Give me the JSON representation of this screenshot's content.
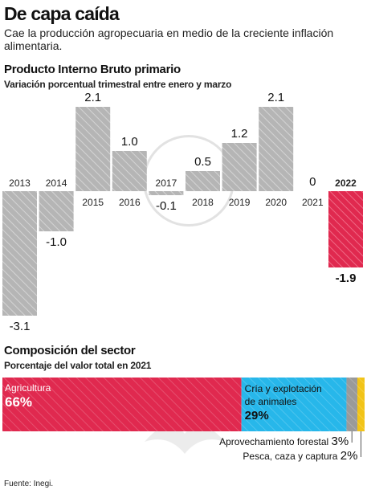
{
  "header": {
    "title": "De capa caída",
    "subtitle": "Cae la producción agropecuaria en medio de la creciente inflación alimentaria."
  },
  "gdp": {
    "title": "Producto Interno Bruto primario",
    "subtitle": "Variación porcentual trimestral entre enero y marzo"
  },
  "composition": {
    "title": "Composición del sector",
    "subtitle": "Porcentaje del valor total en 2021"
  },
  "source": "Fuente: Inegi.",
  "colors": {
    "gray_bar": "#b5b5b5",
    "highlight_bar": "#e0294f",
    "agricultura": "#e0294f",
    "cria": "#27b7ea",
    "forestal": "#9a9a9a",
    "pesca": "#f2c418"
  },
  "chart_data": [
    {
      "type": "bar",
      "categories": [
        "2013",
        "2014",
        "2015",
        "2016",
        "2017",
        "2018",
        "2019",
        "2020",
        "2021",
        "2022"
      ],
      "values": [
        -3.1,
        -1.0,
        2.1,
        1.0,
        -0.1,
        0.5,
        1.2,
        2.1,
        0,
        -1.9
      ],
      "value_labels": [
        "-3.1",
        "-1.0",
        "2.1",
        "1.0",
        "-0.1",
        "0.5",
        "1.2",
        "2.1",
        "0",
        "-1.9"
      ],
      "highlight": "2022",
      "grid": false,
      "bar_style": "hatched"
    },
    {
      "type": "bar",
      "orientation": "horizontal-stacked",
      "categories": [
        "Agricultura",
        "Cría y explotación de animales",
        "Aprovechamiento forestal",
        "Pesca, caza y captura"
      ],
      "values": [
        66,
        29,
        3,
        2
      ],
      "value_labels": [
        "66%",
        "29%",
        "3%",
        "2%"
      ],
      "unit": "%"
    }
  ]
}
